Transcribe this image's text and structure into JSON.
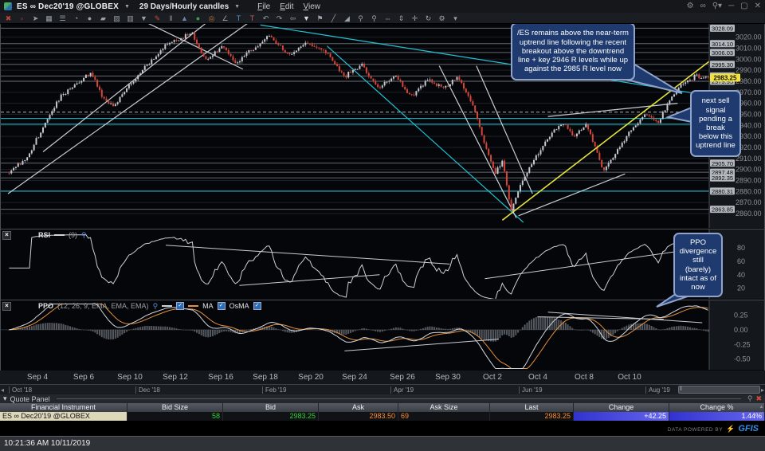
{
  "window": {
    "symbol_title": "ES ∞ Dec20'19 @GLOBEX",
    "timeframe_title": "29 Days/Hourly candles",
    "menus": [
      "File",
      "Edit",
      "View"
    ],
    "right_icons": [
      {
        "name": "settings-gear-icon",
        "glyph": "⚙"
      },
      {
        "name": "link-icon",
        "glyph": "∞"
      },
      {
        "name": "pin-dropdown-icon",
        "glyph": "⚲▾"
      },
      {
        "name": "minimize-icon",
        "glyph": "─"
      },
      {
        "name": "maximize-icon",
        "glyph": "▢"
      },
      {
        "name": "close-icon",
        "glyph": "✕"
      }
    ]
  },
  "toolbar_icons": [
    {
      "name": "delete-tool-icon",
      "glyph": "✖",
      "color": "#c0453a"
    },
    {
      "name": "snap-grid-icon",
      "glyph": "▫",
      "color": "#c0453a"
    },
    {
      "name": "pointer-tool-icon",
      "glyph": "➤"
    },
    {
      "name": "grid-tool-icon",
      "glyph": "▦"
    },
    {
      "name": "list-tool-icon",
      "glyph": "☰"
    },
    {
      "name": "pie-tool-icon",
      "glyph": "◔"
    },
    {
      "name": "ellipse-tool-icon",
      "glyph": "●"
    },
    {
      "name": "polygon-tool-icon",
      "glyph": "▰"
    },
    {
      "name": "image-tool-icon",
      "glyph": "▨"
    },
    {
      "name": "layout-tool-icon",
      "glyph": "▥"
    },
    {
      "name": "filter-dropdown-icon",
      "glyph": "▼"
    },
    {
      "name": "pencil-tool-icon",
      "glyph": "✎",
      "color": "#d04a3a"
    },
    {
      "name": "volume-bars-icon",
      "glyph": "‖"
    },
    {
      "name": "mountain-chart-icon",
      "glyph": "▲",
      "color": "#6a87a8"
    },
    {
      "name": "globe-tool-icon",
      "glyph": "●",
      "color": "#3f9b4f"
    },
    {
      "name": "target-tool-icon",
      "glyph": "◎",
      "color": "#c87a32"
    },
    {
      "name": "angle-tool-icon",
      "glyph": "∠"
    },
    {
      "name": "text-tool-icon",
      "glyph": "T",
      "color": "#5a8fd0"
    },
    {
      "name": "note-tool-icon",
      "glyph": "T",
      "color": "#d05a5a"
    },
    {
      "name": "undo-icon",
      "glyph": "↶"
    },
    {
      "name": "redo-icon",
      "glyph": "↷"
    },
    {
      "name": "callout-tool-icon",
      "glyph": "⇦"
    },
    {
      "name": "funnel-tool-icon",
      "glyph": "▼",
      "color": "#d8dce0"
    },
    {
      "name": "flag-tool-icon",
      "glyph": "⚑"
    },
    {
      "name": "trendline-tool-icon",
      "glyph": "╱"
    },
    {
      "name": "hatch-tool-icon",
      "glyph": "◢"
    },
    {
      "name": "zoom-in-tool-icon",
      "glyph": "⚲"
    },
    {
      "name": "zoom-out-tool-icon",
      "glyph": "⚲"
    },
    {
      "name": "h-expand-tool-icon",
      "glyph": "⇔"
    },
    {
      "name": "v-expand-tool-icon",
      "glyph": "⇕"
    },
    {
      "name": "center-tool-icon",
      "glyph": "✛"
    },
    {
      "name": "rotate-tool-icon",
      "glyph": "↻"
    },
    {
      "name": "settings-tool-icon",
      "glyph": "⚙"
    },
    {
      "name": "more-dropdown-icon",
      "glyph": "▾"
    }
  ],
  "annotations": [
    {
      "text": "/ES remains above the near-term uptrend line following the recent breakout above the downtrend line + key 2946 R levels while up against the 2985 R level now"
    },
    {
      "text": "next sell signal pending a break below this uptrend line"
    },
    {
      "text": "PPO divergence still (barely) intact as of now"
    }
  ],
  "chart_data": {
    "type": "candlestick",
    "symbol": "ES ∞ Dec20'19 @GLOBEX",
    "timeframe": "29 Days / Hourly candles",
    "current_price": 2983.25,
    "num_candles": 310,
    "ylim": [
      2847,
      3032
    ],
    "y_ticks": [
      3020,
      3010,
      3000,
      2990,
      2980,
      2970,
      2960,
      2950,
      2940,
      2930,
      2920,
      2910,
      2900,
      2890,
      2880,
      2870,
      2860
    ],
    "price_path": [
      [
        0.0,
        2898
      ],
      [
        0.025,
        2910
      ],
      [
        0.05,
        2940
      ],
      [
        0.075,
        2968
      ],
      [
        0.1,
        2979
      ],
      [
        0.118,
        2988
      ],
      [
        0.135,
        2964
      ],
      [
        0.15,
        2958
      ],
      [
        0.175,
        2978
      ],
      [
        0.2,
        2996
      ],
      [
        0.225,
        3014
      ],
      [
        0.25,
        3020
      ],
      [
        0.262,
        3024
      ],
      [
        0.28,
        2999
      ],
      [
        0.305,
        3012
      ],
      [
        0.325,
        2996
      ],
      [
        0.345,
        3008
      ],
      [
        0.372,
        3021
      ],
      [
        0.4,
        3003
      ],
      [
        0.425,
        3015
      ],
      [
        0.455,
        3006
      ],
      [
        0.48,
        2984
      ],
      [
        0.505,
        2996
      ],
      [
        0.528,
        2973
      ],
      [
        0.553,
        2985
      ],
      [
        0.575,
        2966
      ],
      [
        0.598,
        2981
      ],
      [
        0.62,
        2974
      ],
      [
        0.642,
        2984
      ],
      [
        0.662,
        2960
      ],
      [
        0.68,
        2924
      ],
      [
        0.695,
        2896
      ],
      [
        0.706,
        2908
      ],
      [
        0.718,
        2862
      ],
      [
        0.73,
        2884
      ],
      [
        0.742,
        2900
      ],
      [
        0.758,
        2915
      ],
      [
        0.775,
        2933
      ],
      [
        0.792,
        2944
      ],
      [
        0.808,
        2930
      ],
      [
        0.825,
        2941
      ],
      [
        0.838,
        2921
      ],
      [
        0.85,
        2899
      ],
      [
        0.865,
        2912
      ],
      [
        0.878,
        2926
      ],
      [
        0.893,
        2938
      ],
      [
        0.91,
        2951
      ],
      [
        0.927,
        2941
      ],
      [
        0.945,
        2964
      ],
      [
        0.962,
        2976
      ],
      [
        0.98,
        2984
      ],
      [
        1.0,
        2983.25
      ]
    ],
    "sr_levels": [
      {
        "price": 3028.09,
        "badge": "3028.09",
        "color": "gray"
      },
      {
        "price": 3014.1,
        "badge": "3014.10",
        "color": "gray"
      },
      {
        "price": 3006.03,
        "badge": "3006.03",
        "color": "gray"
      },
      {
        "price": 2995.3,
        "badge": "2995.30",
        "color": "gray"
      },
      {
        "price": 2984.79,
        "badge": "2984.79",
        "color": "gray"
      },
      {
        "price": 2979.95,
        "badge": "2979.95",
        "color": "gray"
      },
      {
        "price": 2952.0,
        "badge": null,
        "color": "dashed"
      },
      {
        "price": 2946.25,
        "badge": null,
        "color": "cyan"
      },
      {
        "price": 2941.0,
        "badge": null,
        "color": "cyan"
      },
      {
        "price": 2905.7,
        "badge": "2905.70",
        "color": "gray"
      },
      {
        "price": 2897.48,
        "badge": "2897.48",
        "color": "gray"
      },
      {
        "price": 2892.35,
        "badge": "2892.35",
        "color": "gray"
      },
      {
        "price": 2880.31,
        "badge": "2880.31",
        "color": "cyan"
      },
      {
        "price": 2863.85,
        "badge": "2863.85",
        "color": "gray"
      }
    ],
    "trend_lines": [
      {
        "x1": 0.0,
        "p1": 2878,
        "x2": 0.345,
        "p2": 3034,
        "color": "white"
      },
      {
        "x1": 0.05,
        "p1": 2916,
        "x2": 0.285,
        "p2": 3034,
        "color": "white"
      },
      {
        "x1": 0.195,
        "p1": 3034,
        "x2": 0.335,
        "p2": 2991,
        "color": "white"
      },
      {
        "x1": 0.36,
        "p1": 3031,
        "x2": 1.0,
        "p2": 2967,
        "color": "cyan"
      },
      {
        "x1": 0.455,
        "p1": 3012,
        "x2": 0.735,
        "p2": 2852,
        "color": "cyan"
      },
      {
        "x1": 0.615,
        "p1": 2994,
        "x2": 0.725,
        "p2": 2856,
        "color": "white"
      },
      {
        "x1": 0.668,
        "p1": 2994,
        "x2": 0.748,
        "p2": 2878,
        "color": "white"
      },
      {
        "x1": 0.728,
        "p1": 2858,
        "x2": 0.88,
        "p2": 2896,
        "color": "white"
      },
      {
        "x1": 0.77,
        "p1": 2948,
        "x2": 0.955,
        "p2": 2960,
        "color": "white"
      },
      {
        "x1": 0.705,
        "p1": 2854,
        "x2": 1.0,
        "p2": 2998,
        "color": "yellow"
      }
    ],
    "colors": {
      "up": "#c3c9cf",
      "down": "#d8463b",
      "wick_up": "#9aa0a6",
      "wick_down": "#b2453c",
      "white": "#c9ced4",
      "cyan": "#1fc4d6",
      "yellow": "#e6e23c",
      "gray_level": "#8a9098",
      "grid": "#1d2126",
      "axis_text": "#8f949a",
      "badge_bg": "#b4b9bf",
      "badge_text": "#0a0a0a",
      "price_tag_bg": "#f2e23e",
      "rsi_line": "#ccd1d6",
      "ppo_line": "#d2d6da",
      "ppo_signal": "#e6913c",
      "ppo_hist": "#555a60"
    },
    "indicators": {
      "rsi": {
        "label": "RSI",
        "period_label": "(9)",
        "period": 9,
        "ticks": [
          80,
          60,
          40,
          20
        ],
        "range": [
          0,
          100
        ],
        "trend_lines": [
          {
            "x1": 0.225,
            "v1": 84,
            "x2": 0.63,
            "v2": 56
          },
          {
            "x1": 0.33,
            "v1": 24,
            "x2": 0.53,
            "v2": 40
          },
          {
            "x1": 0.68,
            "v1": 34,
            "x2": 0.99,
            "v2": 80
          }
        ]
      },
      "ppo": {
        "label": "PPO",
        "params_label": "(12, 26, 9, EMA, EMA, EMA)",
        "fast": 12,
        "slow": 26,
        "signal": 9,
        "ma_label": "MA",
        "osma_label": "OsMA",
        "ticks": [
          0.25,
          0.0,
          -0.25,
          -0.5
        ],
        "range": [
          -0.68,
          0.47
        ],
        "trend_lines": [
          {
            "x1": 0.48,
            "v1": -0.36,
            "x2": 0.7,
            "v2": -0.16
          },
          {
            "x1": 0.755,
            "v1": 0.22,
            "x2": 0.935,
            "v2": 0.18
          },
          {
            "x1": 0.77,
            "v1": 0.3,
            "x2": 0.99,
            "v2": 0.12
          }
        ]
      }
    },
    "x_axis_labels": [
      {
        "text": "Sep 4",
        "x": 47
      },
      {
        "text": "Sep 6",
        "x": 105
      },
      {
        "text": "Sep 10",
        "x": 163
      },
      {
        "text": "Sep 12",
        "x": 220
      },
      {
        "text": "Sep 16",
        "x": 277
      },
      {
        "text": "Sep 18",
        "x": 333
      },
      {
        "text": "Sep 20",
        "x": 390
      },
      {
        "text": "Sep 24",
        "x": 445
      },
      {
        "text": "Sep 26",
        "x": 505
      },
      {
        "text": "Sep 30",
        "x": 562
      },
      {
        "text": "Oct 2",
        "x": 618
      },
      {
        "text": "Oct 4",
        "x": 675
      },
      {
        "text": "Oct 8",
        "x": 733
      },
      {
        "text": "Oct 10",
        "x": 790
      }
    ]
  },
  "timeline": {
    "labels": [
      {
        "text": "Oct '18",
        "x": 11
      },
      {
        "text": "Dec '18",
        "x": 170
      },
      {
        "text": "Feb '19",
        "x": 329
      },
      {
        "text": "Apr '19",
        "x": 490
      },
      {
        "text": "Jun '19",
        "x": 651
      },
      {
        "text": "Aug '19",
        "x": 810
      }
    ],
    "left_arrow": "◂",
    "right_arrow": "▸",
    "thumb_grip": "‖"
  },
  "quote_panel": {
    "title": "Quote Panel",
    "collapse_glyph": "▾",
    "columns": [
      "Financial Instrument",
      "Bid Size",
      "Bid",
      "Ask",
      "Ask Size",
      "Last",
      "Change",
      "Change %"
    ],
    "row": {
      "instrument": "ES ∞ Dec20'19 @GLOBEX",
      "bid_size": "58",
      "bid": "2983.25",
      "ask": "2983.50",
      "ask_size": "69",
      "last": "2983.25",
      "change": "+42.25",
      "change_pct": "1.44%"
    },
    "colors": {
      "bid": "#2fd32f",
      "ask": "#ff8c28",
      "last": "#ff8c28"
    }
  },
  "branding": {
    "powered_by": "DATA POWERED BY",
    "logo": "GFIS",
    "bolt": "⚡"
  },
  "status_bar": {
    "datetime": "10:21:36 AM 10/11/2019"
  }
}
